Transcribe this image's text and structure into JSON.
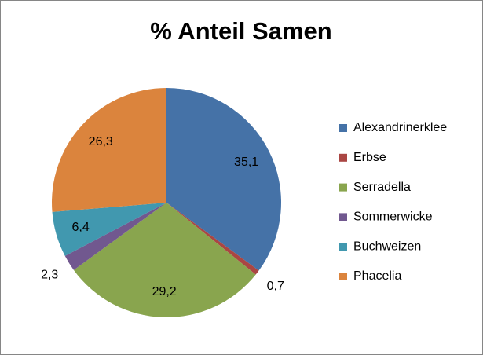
{
  "chart_data": {
    "type": "pie",
    "title": "% Anteil Samen",
    "categories": [
      "Alexandrinerklee",
      "Erbse",
      "Serradella",
      "Sommerwicke",
      "Buchweizen",
      "Phacelia"
    ],
    "values": [
      35.1,
      0.7,
      29.2,
      2.3,
      6.4,
      26.3
    ],
    "value_labels": [
      "35,1",
      "0,7",
      "29,2",
      "2,3",
      "6,4",
      "26,3"
    ],
    "colors": [
      "#4572a7",
      "#aa4643",
      "#89a54e",
      "#71588f",
      "#4198af",
      "#db843d"
    ],
    "legend": "right"
  }
}
